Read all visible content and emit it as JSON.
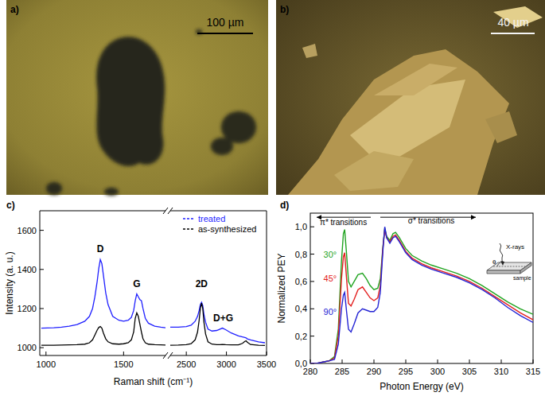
{
  "images": [
    {
      "label": "a)",
      "scale_bar": "100 µm"
    },
    {
      "label": "b)",
      "scale_bar": "40 µm"
    }
  ],
  "chart_data": [
    {
      "type": "line",
      "title": "c)",
      "x_label": "Raman shift (cm⁻¹)",
      "y_label": "Intensity (a. u.)",
      "x": [
        970,
        1050,
        1100,
        1150,
        1200,
        1250,
        1280,
        1300,
        1315,
        1330,
        1340,
        1350,
        1360,
        1370,
        1385,
        1400,
        1430,
        1470,
        1500,
        1530,
        1550,
        1565,
        1575,
        1585,
        1595,
        1605,
        1615,
        1625,
        1640,
        1660,
        1700,
        1740,
        1770,
        2000,
        2300,
        2400,
        2500,
        2560,
        2610,
        2640,
        2660,
        2675,
        2690,
        2705,
        2720,
        2740,
        2770,
        2820,
        2880,
        2920,
        2950,
        2990,
        3060,
        3150,
        3200,
        3230,
        3245,
        3260,
        3300,
        3400,
        3480
      ],
      "series": [
        {
          "name": "treated",
          "color": "#1f1fff",
          "line_style": "solid",
          "values": [
            1100,
            1102,
            1105,
            1110,
            1118,
            1135,
            1160,
            1200,
            1260,
            1340,
            1405,
            1450,
            1430,
            1370,
            1280,
            1220,
            1160,
            1140,
            1135,
            1140,
            1155,
            1190,
            1240,
            1275,
            1260,
            1245,
            1240,
            1200,
            1150,
            1125,
            1110,
            1105,
            1102,
            null,
            1105,
            1105,
            1108,
            1115,
            1135,
            1160,
            1190,
            1220,
            1232,
            1215,
            1170,
            1130,
            1095,
            1085,
            1088,
            1095,
            1100,
            1092,
            1075,
            1060,
            1055,
            1052,
            1050,
            1045,
            1040,
            1030,
            1025
          ]
        },
        {
          "name": "as-synthesized",
          "color": "#000000",
          "line_style": "solid",
          "values": [
            1012,
            1012,
            1013,
            1014,
            1015,
            1018,
            1025,
            1040,
            1065,
            1090,
            1103,
            1108,
            1100,
            1075,
            1045,
            1030,
            1020,
            1018,
            1020,
            1025,
            1040,
            1080,
            1150,
            1178,
            1160,
            1120,
            1080,
            1045,
            1025,
            1018,
            1015,
            1014,
            1013,
            null,
            1012,
            1013,
            1015,
            1020,
            1040,
            1080,
            1140,
            1200,
            1228,
            1200,
            1130,
            1070,
            1030,
            1018,
            1015,
            1015,
            1016,
            1015,
            1014,
            1014,
            1022,
            1032,
            1035,
            1028,
            1016,
            1012,
            1011
          ]
        }
      ],
      "x_segments": [
        {
          "xlim": [
            960,
            1770
          ],
          "xticks": [
            1000,
            1500
          ]
        },
        {
          "xlim": [
            2300,
            3500
          ],
          "xticks": [
            2500,
            3000,
            3500
          ]
        }
      ],
      "ylim": [
        960,
        1700
      ],
      "yticks": [
        1000,
        1200,
        1400,
        1600
      ],
      "legend": "upper right",
      "annotations": [
        {
          "text": "D",
          "x": 1350,
          "y": 1490
        },
        {
          "text": "G",
          "x": 1585,
          "y": 1310
        },
        {
          "text": "2D",
          "x": 2690,
          "y": 1310
        },
        {
          "text": "D+G",
          "x": 2960,
          "y": 1135
        }
      ]
    },
    {
      "type": "line",
      "title": "d)",
      "x_label": "Photon Energy (eV)",
      "y_label": "Normalized PEY",
      "x": [
        280,
        281,
        282,
        283,
        283.8,
        284.4,
        284.9,
        285.2,
        285.4,
        285.7,
        286.0,
        286.4,
        286.9,
        287.5,
        288.2,
        288.8,
        289.4,
        290.0,
        290.6,
        291.0,
        291.4,
        291.7,
        292.0,
        292.5,
        293.0,
        293.4,
        294.0,
        295.0,
        296.0,
        297.5,
        299.0,
        301.0,
        303.0,
        305.0,
        307.0,
        309.0,
        311.0,
        313.0,
        315.0
      ],
      "series": [
        {
          "name": "30°",
          "color": "#1fa31f",
          "line_style": "solid",
          "values": [
            0.0,
            0.0,
            0.01,
            0.02,
            0.05,
            0.25,
            0.75,
            0.95,
            0.98,
            0.8,
            0.6,
            0.56,
            0.6,
            0.65,
            0.66,
            0.62,
            0.57,
            0.54,
            0.55,
            0.62,
            0.85,
            0.99,
            0.93,
            0.9,
            0.95,
            0.96,
            0.92,
            0.84,
            0.79,
            0.75,
            0.72,
            0.69,
            0.66,
            0.62,
            0.57,
            0.51,
            0.45,
            0.4,
            0.36
          ]
        },
        {
          "name": "45°",
          "color": "#e32020",
          "line_style": "solid",
          "values": [
            0.0,
            0.0,
            0.01,
            0.02,
            0.04,
            0.2,
            0.62,
            0.78,
            0.81,
            0.62,
            0.44,
            0.42,
            0.47,
            0.54,
            0.56,
            0.52,
            0.48,
            0.46,
            0.48,
            0.57,
            0.84,
            0.98,
            0.92,
            0.89,
            0.93,
            0.94,
            0.9,
            0.82,
            0.77,
            0.73,
            0.7,
            0.67,
            0.64,
            0.6,
            0.55,
            0.49,
            0.43,
            0.37,
            0.32
          ]
        },
        {
          "name": "90°",
          "color": "#2323d4",
          "line_style": "solid",
          "values": [
            0.0,
            0.0,
            0.01,
            0.02,
            0.03,
            0.14,
            0.4,
            0.5,
            0.52,
            0.38,
            0.25,
            0.23,
            0.29,
            0.37,
            0.4,
            0.39,
            0.38,
            0.38,
            0.41,
            0.52,
            0.82,
            1.0,
            0.92,
            0.88,
            0.92,
            0.93,
            0.89,
            0.81,
            0.76,
            0.72,
            0.69,
            0.66,
            0.63,
            0.59,
            0.54,
            0.48,
            0.41,
            0.35,
            0.3
          ]
        }
      ],
      "xlim": [
        280,
        315
      ],
      "xticks": [
        280,
        285,
        290,
        295,
        300,
        305,
        310,
        315
      ],
      "ylim": [
        0,
        1.1
      ],
      "yticks": [
        {
          "value": 0,
          "label": "0,0"
        },
        {
          "value": 0.2,
          "label": "0,2"
        },
        {
          "value": 0.4,
          "label": "0,4"
        },
        {
          "value": 0.6,
          "label": "0,6"
        },
        {
          "value": 0.8,
          "label": "0,8"
        },
        {
          "value": 1.0,
          "label": "1,0"
        }
      ],
      "annotations": [
        {
          "text": "π* transitions",
          "x": 285.2,
          "y": 1.015,
          "arrow": [
            289.5,
            281.0
          ],
          "arrow_y": 1.07
        },
        {
          "text": "σ* transitions",
          "x": 299,
          "y": 1.025,
          "arrow": [
            291.0,
            306.0
          ],
          "arrow_y": 1.07
        }
      ],
      "inset": {
        "beam": "X-rays",
        "angle": "θ",
        "sample": "sample"
      }
    }
  ]
}
